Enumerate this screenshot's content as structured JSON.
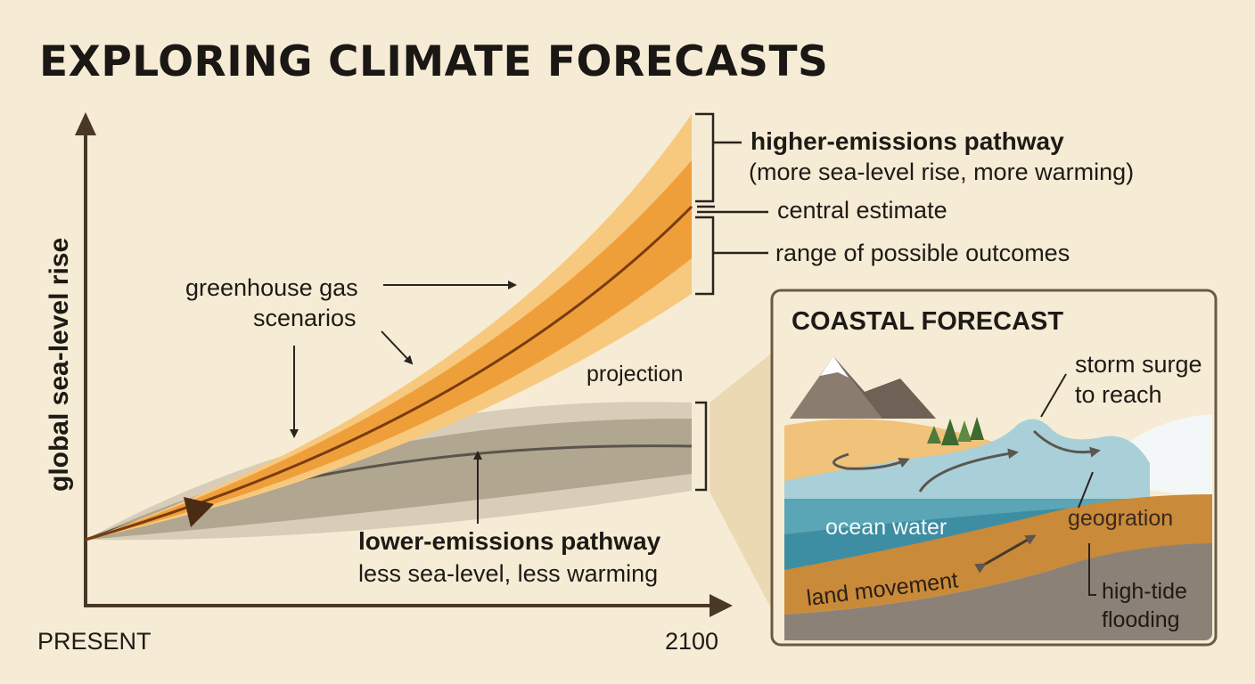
{
  "title": "EXPLORING CLIMATE FORECASTS",
  "axes": {
    "y_label": "global sea-level rise",
    "x_start": "PRESENT",
    "x_end": "2100"
  },
  "annotations": {
    "high_pathway_title": "higher-emissions pathway",
    "high_pathway_sub": "(more sea-level rise, more warming)",
    "central_estimate": "central estimate",
    "range": "range of possible outcomes",
    "scenarios_line1": "greenhouse gas",
    "scenarios_line2": "scenarios",
    "projection": "projection",
    "low_pathway_title": "lower-emissions pathway",
    "low_pathway_sub": "less sea-level, less warming"
  },
  "inset": {
    "title": "COASTAL FORECAST",
    "storm_line1": "storm surge",
    "storm_line2": "to reach",
    "ocean": "ocean water",
    "geography": "geogration",
    "land": "land movement",
    "flood_line1": "high-tide",
    "flood_line2": "flooding"
  },
  "colors": {
    "background": "#f6ecd5",
    "high_outer": "#f7c97f",
    "high_inner": "#ef9f3a",
    "high_line": "#7a3b10",
    "low_outer": "#d8cdb9",
    "low_inner": "#b1a690",
    "low_line": "#5a554c",
    "axis": "#4a3826"
  }
}
